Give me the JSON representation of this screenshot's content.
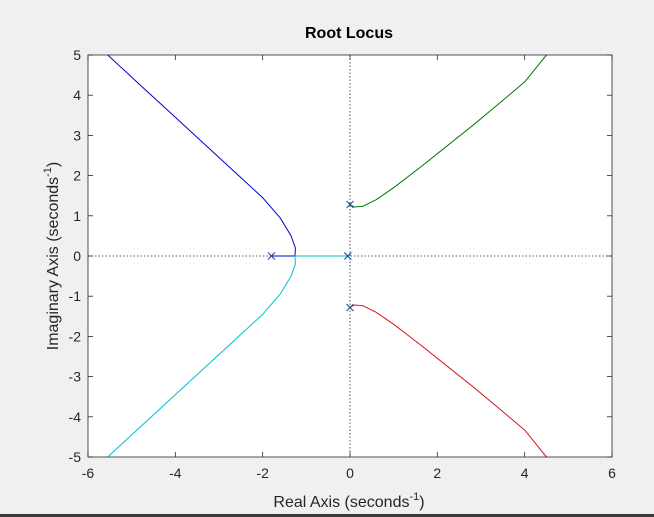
{
  "chart_data": {
    "type": "line",
    "title": "Root Locus",
    "xlabel_main": "Real Axis (seconds",
    "xlabel_sup": "-1",
    "xlabel_end": ")",
    "ylabel_main": "Imaginary Axis (seconds",
    "ylabel_sup": "-1",
    "ylabel_end": ")",
    "xlim": [
      -6,
      6
    ],
    "ylim": [
      -5,
      5
    ],
    "xticks": [
      -6,
      -4,
      -2,
      0,
      2,
      4,
      6
    ],
    "yticks": [
      -5,
      -4,
      -3,
      -2,
      -1,
      0,
      1,
      2,
      3,
      4,
      5
    ],
    "grid": false,
    "poles": [
      {
        "x": -1.8,
        "y": 0
      },
      {
        "x": -0.05,
        "y": 0
      },
      {
        "x": 0,
        "y": 1.28
      },
      {
        "x": 0,
        "y": -1.28
      }
    ],
    "series": [
      {
        "color": "#0000cd",
        "x": [
          -5.55,
          -4.8,
          -4.0,
          -3.2,
          -2.6,
          -2.0,
          -1.6,
          -1.35,
          -1.25,
          -1.26,
          -1.4,
          -1.8
        ],
        "y": [
          5,
          4.25,
          3.45,
          2.65,
          2.05,
          1.45,
          0.95,
          0.5,
          0.2,
          0.0,
          0.0,
          0.0
        ]
      },
      {
        "color": "#00bfcf",
        "x": [
          -0.05,
          -0.5,
          -1.0,
          -1.26,
          -1.25,
          -1.35,
          -1.6,
          -2.0,
          -2.6,
          -3.2,
          -4.0,
          -4.8,
          -5.55
        ],
        "y": [
          0.0,
          0.0,
          0.0,
          0.0,
          -0.2,
          -0.5,
          -0.95,
          -1.45,
          -2.05,
          -2.65,
          -3.45,
          -4.25,
          -5
        ]
      },
      {
        "color": "#007a00",
        "x": [
          0,
          0.1,
          0.3,
          0.6,
          1.0,
          1.6,
          2.2,
          2.8,
          3.4,
          4.0,
          4.5
        ],
        "y": [
          1.28,
          1.22,
          1.24,
          1.4,
          1.7,
          2.2,
          2.72,
          3.24,
          3.78,
          4.33,
          5
        ]
      },
      {
        "color": "#d4191f",
        "x": [
          0,
          0.1,
          0.3,
          0.6,
          1.0,
          1.6,
          2.2,
          2.8,
          3.4,
          4.0,
          4.5
        ],
        "y": [
          -1.28,
          -1.22,
          -1.24,
          -1.4,
          -1.7,
          -2.2,
          -2.72,
          -3.24,
          -3.78,
          -4.33,
          -5
        ]
      }
    ]
  }
}
